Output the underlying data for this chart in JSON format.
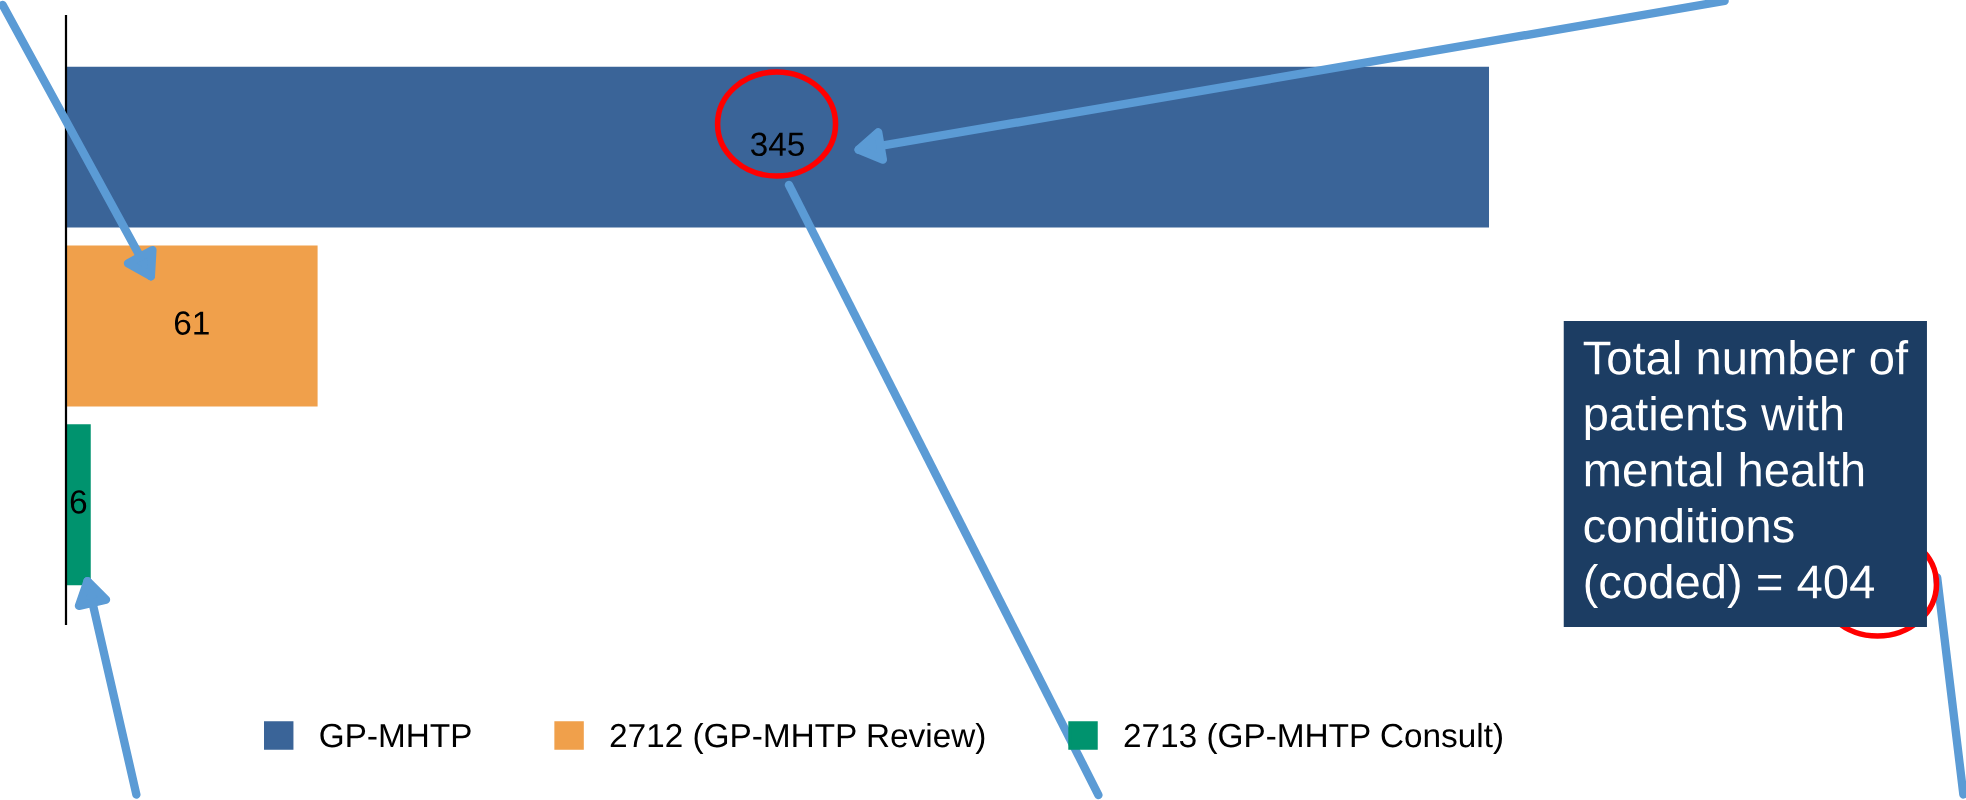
{
  "chart_data": {
    "type": "bar",
    "orientation": "horizontal",
    "categories": [
      null
    ],
    "series": [
      {
        "name": "GP-MHTP",
        "color": "#3a6498",
        "values": [
          345
        ]
      },
      {
        "name": "2712 (GP-MHTP Review)",
        "color": "#f0a04b",
        "values": [
          61
        ]
      },
      {
        "name": "2713 (GP-MHTP Consult)",
        "color": "#00936e",
        "values": [
          6
        ]
      }
    ],
    "data_labels": true,
    "legend": "bottom",
    "grid": false,
    "annotations": [
      "Total number of\npatients with\nmental health\nconditions\n(coded) = 404"
    ]
  }
}
